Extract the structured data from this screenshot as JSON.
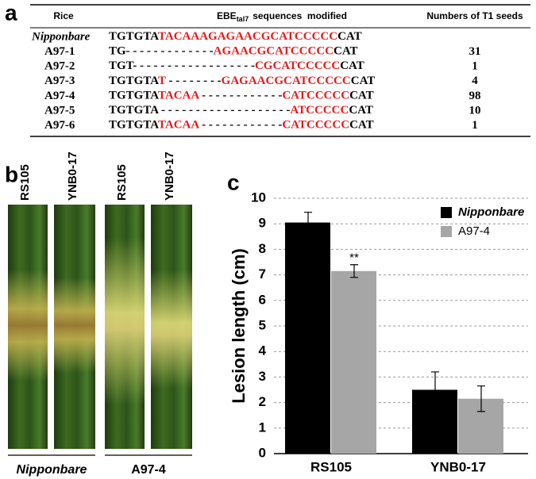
{
  "panel_a": {
    "label": "a",
    "headers": {
      "rice": "Rice",
      "sequence": {
        "main": "EBE",
        "sub": "tal7",
        "rest": "sequences  modified"
      },
      "seeds": "Numbers of T1 seeds"
    },
    "rows": [
      {
        "name": "Nipponbare",
        "segments": [
          {
            "text": "TGTGTA",
            "color": "#000000"
          },
          {
            "text": "TACAAAGAGAACGCATCCCCC",
            "color": "#e8191b"
          },
          {
            "text": "CAT",
            "color": "#000000"
          }
        ]
      },
      {
        "name": "A97-1",
        "segments": [
          {
            "text": "TG- - - - - - - - - - - - -",
            "color": "#000000"
          },
          {
            "text": "AGAACGCATCCCCC",
            "color": "#e8191b"
          },
          {
            "text": "CAT",
            "color": "#000000"
          }
        ],
        "seeds": 31
      },
      {
        "name": "A97-2",
        "segments": [
          {
            "text": "TGT- - - - - - - - - - - - - - - - - -",
            "color": "#000000"
          },
          {
            "text": "CGCATCCCCC",
            "color": "#e8191b"
          },
          {
            "text": "CAT",
            "color": "#000000"
          }
        ],
        "seeds": 1
      },
      {
        "name": "A97-3",
        "segments": [
          {
            "text": "TGTGTA",
            "color": "#000000"
          },
          {
            "text": "T",
            "color": "#e8191b"
          },
          {
            "text": " - - - - - - - -",
            "color": "#000000"
          },
          {
            "text": "GAGAACGCATCCCCC",
            "color": "#e8191b"
          },
          {
            "text": "CAT",
            "color": "#000000"
          }
        ],
        "seeds": 4
      },
      {
        "name": "A97-4",
        "segments": [
          {
            "text": "TGTGTA",
            "color": "#000000"
          },
          {
            "text": "TACAA",
            "color": "#e8191b"
          },
          {
            "text": " - - - - - - - - - - - -",
            "color": "#000000"
          },
          {
            "text": "CATCCCCC",
            "color": "#e8191b"
          },
          {
            "text": "CAT",
            "color": "#000000"
          }
        ],
        "seeds": 98
      },
      {
        "name": "A97-5",
        "segments": [
          {
            "text": "TGTGTA",
            "color": "#000000"
          },
          {
            "text": " - - - - - - - - - - - - - - - - - - -",
            "color": "#000000"
          },
          {
            "text": "ATCCCCC",
            "color": "#e8191b"
          },
          {
            "text": "CAT",
            "color": "#000000"
          }
        ],
        "seeds": 10
      },
      {
        "name": "A97-6",
        "segments": [
          {
            "text": "TGTGTA",
            "color": "#000000"
          },
          {
            "text": "TACAA",
            "color": "#e8191b"
          },
          {
            "text": " - - - - - - - - - - - -",
            "color": "#000000"
          },
          {
            "text": "CATCCCCC",
            "color": "#e8191b"
          },
          {
            "text": "CAT",
            "color": "#000000"
          }
        ],
        "seeds": 1
      }
    ]
  },
  "panel_b": {
    "label": "b",
    "strains": [
      "RS105",
      "YNB0-17",
      "RS105",
      "YNB0-17"
    ],
    "groups": [
      "Nipponbare",
      "A97-4"
    ]
  },
  "chart_data": {
    "type": "bar",
    "label": "c",
    "y_label": "Lesion length (cm)",
    "categories": [
      "RS105",
      "YNB0-17"
    ],
    "series": [
      {
        "name": "Nipponbare",
        "color": "#000000",
        "values": [
          9.05,
          2.5
        ],
        "errors": [
          0.4,
          0.7
        ]
      },
      {
        "name": "A97-4",
        "color": "#a6a6a6",
        "values": [
          7.15,
          2.15
        ],
        "errors": [
          0.25,
          0.5
        ]
      }
    ],
    "annotation": "**",
    "ylim": [
      0,
      10
    ],
    "yticks": [
      0,
      1,
      2,
      3,
      4,
      5,
      6,
      7,
      8,
      9,
      10
    ],
    "grid": true,
    "legend": "top-right"
  }
}
